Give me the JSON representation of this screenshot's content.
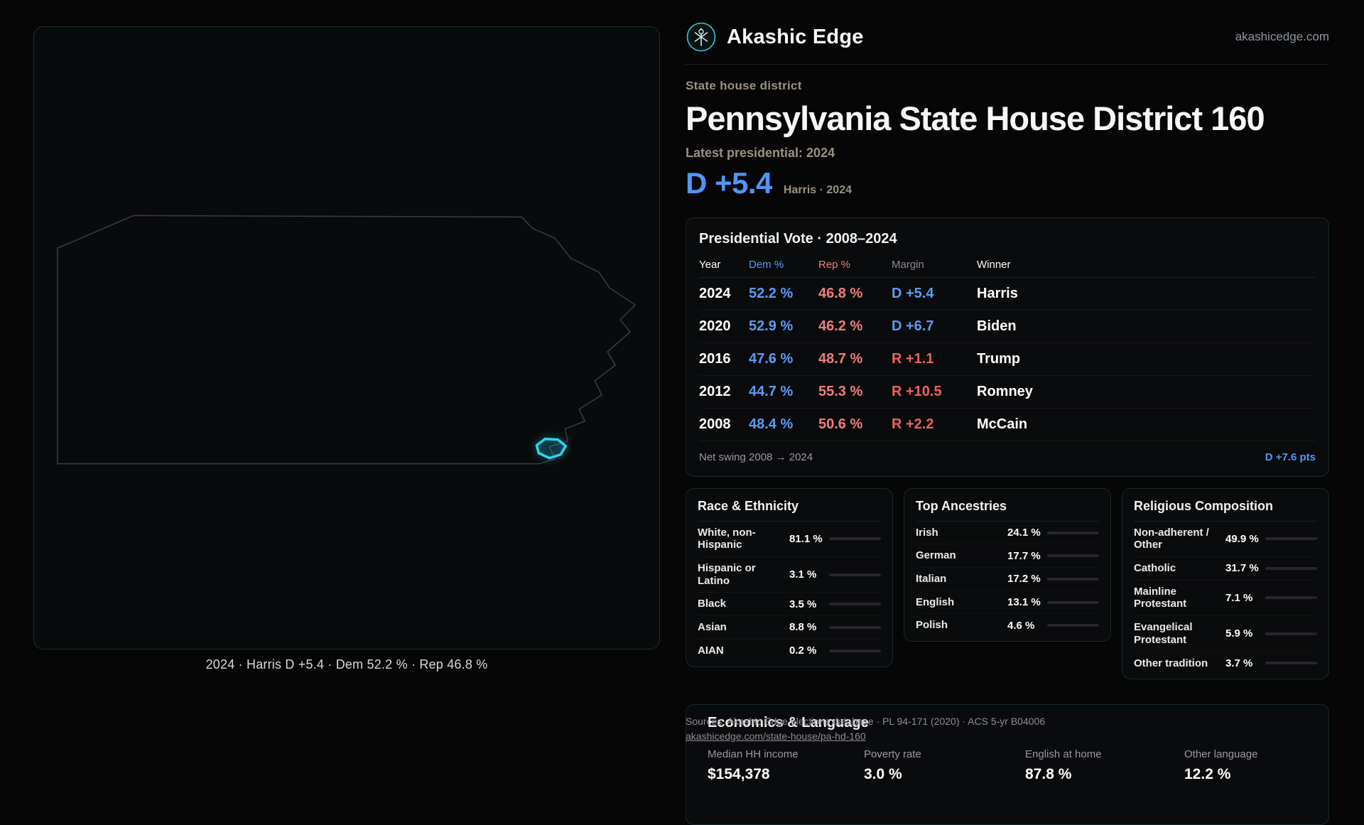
{
  "brand": {
    "name": "Akashic Edge",
    "domain": "akashicedge.com"
  },
  "map": {
    "caption": "2024 · Harris D +5.4 · Dem 52.2 % · Rep 46.8 %"
  },
  "header": {
    "eyebrow": "State house district",
    "title": "Pennsylvania State House District 160",
    "latest_label": "Latest presidential: 2024",
    "margin_value": "D +5.4",
    "margin_note": "Harris · 2024"
  },
  "presidential_table": {
    "title": "Presidential Vote · 2008–2024",
    "columns": [
      "Year",
      "Dem %",
      "Rep %",
      "Margin",
      "Winner"
    ],
    "rows": [
      {
        "year": "2024",
        "dem": "52.2 %",
        "rep": "46.8 %",
        "margin": "D +5.4",
        "winner": "Harris",
        "party": "D"
      },
      {
        "year": "2020",
        "dem": "52.9 %",
        "rep": "46.2 %",
        "margin": "D +6.7",
        "winner": "Biden",
        "party": "D"
      },
      {
        "year": "2016",
        "dem": "47.6 %",
        "rep": "48.7 %",
        "margin": "R +1.1",
        "winner": "Trump",
        "party": "R"
      },
      {
        "year": "2012",
        "dem": "44.7 %",
        "rep": "55.3 %",
        "margin": "R +10.5",
        "winner": "Romney",
        "party": "R"
      },
      {
        "year": "2008",
        "dem": "48.4 %",
        "rep": "50.6 %",
        "margin": "R +2.2",
        "winner": "McCain",
        "party": "R"
      }
    ],
    "footer": {
      "label": "Net swing 2008 → 2024",
      "value": "D +7.6 pts"
    }
  },
  "demographics": [
    {
      "title": "Race & Ethnicity",
      "rows": [
        {
          "label": "White, non-Hispanic",
          "value": "81.1 %",
          "pct": 81.1,
          "color": "#a9b2c2"
        },
        {
          "label": "Hispanic or Latino",
          "value": "3.1 %",
          "pct": 3.1,
          "color": "#e0a43c"
        },
        {
          "label": "Black",
          "value": "3.5 %",
          "pct": 3.5,
          "color": "#6f6cf2"
        },
        {
          "label": "Asian",
          "value": "8.8 %",
          "pct": 8.8,
          "color": "#2fd49e"
        },
        {
          "label": "AIAN",
          "value": "0.2 %",
          "pct": 0.2,
          "color": "#9aa2b0"
        }
      ]
    },
    {
      "title": "Top Ancestries",
      "rows": [
        {
          "label": "Irish",
          "value": "24.1 %",
          "pct": 24.1,
          "color": "#9aa2b0"
        },
        {
          "label": "German",
          "value": "17.7 %",
          "pct": 17.7,
          "color": "#9aa2b0"
        },
        {
          "label": "Italian",
          "value": "17.2 %",
          "pct": 17.2,
          "color": "#9aa2b0"
        },
        {
          "label": "English",
          "value": "13.1 %",
          "pct": 13.1,
          "color": "#9aa2b0"
        },
        {
          "label": "Polish",
          "value": "4.6 %",
          "pct": 4.6,
          "color": "#9aa2b0"
        }
      ]
    },
    {
      "title": "Religious Composition",
      "rows": [
        {
          "label": "Non-adherent / Other",
          "value": "49.9 %",
          "pct": 49.9,
          "color": "#9aa2b0"
        },
        {
          "label": "Catholic",
          "value": "31.7 %",
          "pct": 31.7,
          "color": "#e3b33c"
        },
        {
          "label": "Mainline Protestant",
          "value": "7.1 %",
          "pct": 7.1,
          "color": "#4f8ef7"
        },
        {
          "label": "Evangelical Protestant",
          "value": "5.9 %",
          "pct": 5.9,
          "color": "#e25d5d"
        },
        {
          "label": "Other tradition",
          "value": "3.7 %",
          "pct": 3.7,
          "color": "#9aa2b0"
        }
      ]
    }
  ],
  "economics": {
    "title": "Economics & Language",
    "stats": [
      {
        "label": "Median HH income",
        "value": "$154,378"
      },
      {
        "label": "Poverty rate",
        "value": "3.0 %"
      },
      {
        "label": "English at home",
        "value": "87.8 %"
      },
      {
        "label": "Other language",
        "value": "12.2 %"
      }
    ]
  },
  "sources": {
    "line1": "Sources: Akashic Edge elections database · PL 94-171 (2020) · ACS 5-yr B04006",
    "line2": "akashicedge.com/state-house/pa-hd-160"
  }
}
